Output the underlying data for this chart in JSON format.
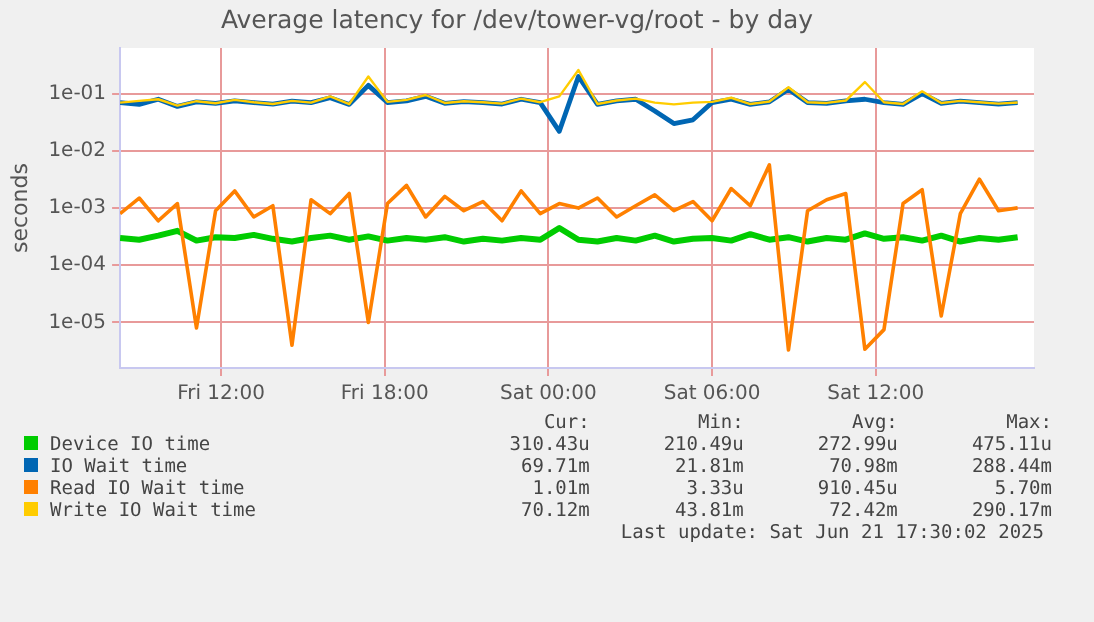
{
  "chart_data": {
    "type": "line",
    "title": "Average latency for /dev/tower-vg/root - by day",
    "ylabel": "seconds",
    "log": true,
    "grid": true,
    "legend": "bottom",
    "marker": "none",
    "line_style": "solid",
    "x": [
      "2025-06-20T08:18",
      "2025-06-20T09:00",
      "2025-06-20T09:42",
      "2025-06-20T10:24",
      "2025-06-20T11:06",
      "2025-06-20T11:48",
      "2025-06-20T12:30",
      "2025-06-20T13:12",
      "2025-06-20T13:54",
      "2025-06-20T14:36",
      "2025-06-20T15:18",
      "2025-06-20T16:00",
      "2025-06-20T16:42",
      "2025-06-20T17:24",
      "2025-06-20T18:06",
      "2025-06-20T18:48",
      "2025-06-20T19:30",
      "2025-06-20T20:12",
      "2025-06-20T20:54",
      "2025-06-20T21:36",
      "2025-06-20T22:18",
      "2025-06-20T23:00",
      "2025-06-20T23:42",
      "2025-06-21T00:24",
      "2025-06-21T01:06",
      "2025-06-21T01:48",
      "2025-06-21T02:30",
      "2025-06-21T03:12",
      "2025-06-21T03:54",
      "2025-06-21T04:36",
      "2025-06-21T05:18",
      "2025-06-21T06:00",
      "2025-06-21T06:42",
      "2025-06-21T07:24",
      "2025-06-21T08:06",
      "2025-06-21T08:48",
      "2025-06-21T09:30",
      "2025-06-21T10:12",
      "2025-06-21T10:54",
      "2025-06-21T11:36",
      "2025-06-21T12:18",
      "2025-06-21T13:00",
      "2025-06-21T13:42",
      "2025-06-21T14:24",
      "2025-06-21T15:06",
      "2025-06-21T15:48",
      "2025-06-21T16:30",
      "2025-06-21T17:12"
    ],
    "xlim": [
      "2025-06-20T08:18",
      "2025-06-21T17:48"
    ],
    "xticks": [
      {
        "value": "2025-06-20T12:00",
        "label": "Fri 12:00"
      },
      {
        "value": "2025-06-20T18:00",
        "label": "Fri 18:00"
      },
      {
        "value": "2025-06-21T00:00",
        "label": "Sat 00:00"
      },
      {
        "value": "2025-06-21T06:00",
        "label": "Sat 06:00"
      },
      {
        "value": "2025-06-21T12:00",
        "label": "Sat 12:00"
      }
    ],
    "ylim": [
      1.6e-06,
      0.63
    ],
    "yticks": [
      {
        "value": 1e-05,
        "label": "1e-05"
      },
      {
        "value": 0.0001,
        "label": "1e-04"
      },
      {
        "value": 0.001,
        "label": "1e-03"
      },
      {
        "value": 0.01,
        "label": "1e-02"
      },
      {
        "value": 0.1,
        "label": "1e-01"
      }
    ],
    "series": [
      {
        "name": "Device IO time",
        "color": "#00cc00",
        "values": [
          0.0003,
          0.00028,
          0.00033,
          0.0004,
          0.00027,
          0.00031,
          0.0003,
          0.00034,
          0.00029,
          0.00026,
          0.0003,
          0.00033,
          0.00028,
          0.00032,
          0.00027,
          0.0003,
          0.00028,
          0.00031,
          0.00026,
          0.00029,
          0.00027,
          0.0003,
          0.00028,
          0.00045,
          0.00028,
          0.00026,
          0.0003,
          0.00027,
          0.00033,
          0.00026,
          0.00029,
          0.0003,
          0.00027,
          0.00035,
          0.00028,
          0.00031,
          0.00026,
          0.0003,
          0.00028,
          0.00036,
          0.00029,
          0.00031,
          0.00027,
          0.00033,
          0.00026,
          0.0003,
          0.00028,
          0.00031
        ]
      },
      {
        "name": "IO Wait time",
        "color": "#0066b3",
        "values": [
          0.07,
          0.065,
          0.08,
          0.06,
          0.072,
          0.068,
          0.075,
          0.07,
          0.066,
          0.074,
          0.07,
          0.085,
          0.065,
          0.14,
          0.07,
          0.075,
          0.09,
          0.068,
          0.073,
          0.07,
          0.066,
          0.08,
          0.07,
          0.022,
          0.2,
          0.065,
          0.075,
          0.08,
          0.05,
          0.03,
          0.035,
          0.07,
          0.08,
          0.065,
          0.072,
          0.12,
          0.07,
          0.068,
          0.075,
          0.08,
          0.07,
          0.065,
          0.1,
          0.068,
          0.074,
          0.07,
          0.066,
          0.07
        ]
      },
      {
        "name": "Read IO Wait time",
        "color": "#ff8000",
        "values": [
          0.0008,
          0.0015,
          0.0006,
          0.0012,
          8e-06,
          0.0009,
          0.002,
          0.0007,
          0.0011,
          4e-06,
          0.0014,
          0.0008,
          0.0018,
          1e-05,
          0.0012,
          0.0025,
          0.0007,
          0.0016,
          0.0009,
          0.0013,
          0.0006,
          0.002,
          0.0008,
          0.0012,
          0.001,
          0.0015,
          0.0007,
          0.0011,
          0.0017,
          0.0009,
          0.0013,
          0.0006,
          0.0022,
          0.0011,
          0.0057,
          3.3e-06,
          0.0009,
          0.0014,
          0.0018,
          3.4e-06,
          7.5e-06,
          0.0012,
          0.0021,
          1.3e-05,
          0.0008,
          0.0032,
          0.0009,
          0.00101
        ]
      },
      {
        "name": "Write IO Wait time",
        "color": "#ffcc00",
        "values": [
          0.07,
          0.075,
          0.08,
          0.062,
          0.074,
          0.068,
          0.078,
          0.071,
          0.066,
          0.075,
          0.07,
          0.09,
          0.066,
          0.2,
          0.072,
          0.078,
          0.095,
          0.069,
          0.074,
          0.071,
          0.067,
          0.082,
          0.071,
          0.09,
          0.26,
          0.066,
          0.076,
          0.082,
          0.07,
          0.065,
          0.07,
          0.072,
          0.085,
          0.066,
          0.073,
          0.13,
          0.071,
          0.069,
          0.076,
          0.16,
          0.071,
          0.066,
          0.11,
          0.069,
          0.075,
          0.071,
          0.067,
          0.0701
        ]
      }
    ],
    "annotations": [
      "Cur:",
      "Min:",
      "Avg:",
      "Max:",
      "310.43u",
      "210.49u",
      "272.99u",
      "475.11u",
      "69.71m",
      "21.81m",
      "70.98m",
      "288.44m",
      "1.01m",
      "3.33u",
      "910.45u",
      "5.70m",
      "70.12m",
      "43.81m",
      "72.42m",
      "290.17m",
      "Last update: Sat Jun 21 17:30:02 2025"
    ]
  }
}
